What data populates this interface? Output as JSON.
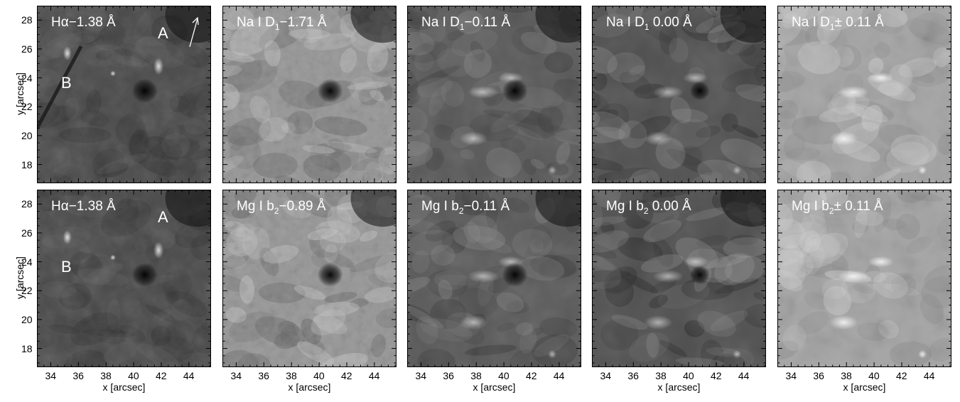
{
  "axes": {
    "x_title": "x [arcsec]",
    "y_title": "y [arcsec]",
    "x_ticks": [
      "34",
      "36",
      "38",
      "40",
      "42",
      "44"
    ],
    "y_ticks": [
      "28",
      "26",
      "24",
      "22",
      "20",
      "18"
    ]
  },
  "rows": [
    {
      "panels": [
        {
          "label_main": "Hα−1.38 Å",
          "label_sub": "",
          "label_tail": "",
          "variant": "ha",
          "features": [
            "A",
            "B"
          ],
          "arrow": true
        },
        {
          "label_main": "Na I D",
          "label_sub": "1",
          "label_tail": "−1.71 Å",
          "variant": "photo",
          "features": [],
          "arrow": false
        },
        {
          "label_main": "Na I D",
          "label_sub": "1",
          "label_tail": "−0.11 Å",
          "variant": "chromo",
          "features": [],
          "arrow": false
        },
        {
          "label_main": "Na I D",
          "label_sub": "1",
          "label_tail": " 0.00 Å",
          "variant": "core",
          "features": [],
          "arrow": false
        },
        {
          "label_main": "Na I D",
          "label_sub": "1",
          "label_tail": "± 0.11 Å",
          "variant": "diff",
          "features": [],
          "arrow": false
        }
      ]
    },
    {
      "panels": [
        {
          "label_main": "Hα−1.38 Å",
          "label_sub": "",
          "label_tail": "",
          "variant": "ha",
          "features": [
            "A",
            "B"
          ],
          "arrow": false
        },
        {
          "label_main": "Mg I b",
          "label_sub": "2",
          "label_tail": "−0.89 Å",
          "variant": "photo",
          "features": [],
          "arrow": false
        },
        {
          "label_main": "Mg I b",
          "label_sub": "2",
          "label_tail": "−0.11 Å",
          "variant": "chromo",
          "features": [],
          "arrow": false
        },
        {
          "label_main": "Mg I b",
          "label_sub": "2",
          "label_tail": " 0.00 Å",
          "variant": "core",
          "features": [],
          "arrow": false
        },
        {
          "label_main": "Mg I b",
          "label_sub": "2",
          "label_tail": "± 0.11 Å",
          "variant": "diff",
          "features": [],
          "arrow": false
        }
      ]
    }
  ]
}
